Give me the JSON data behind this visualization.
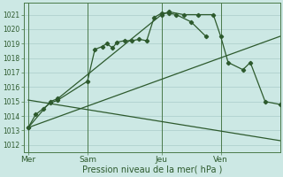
{
  "bg_color": "#cce8e4",
  "grid_color": "#aaccca",
  "line_color": "#2d5a2d",
  "xlabel": "Pression niveau de la mer( hPa )",
  "ylim": [
    1011.5,
    1021.8
  ],
  "yticks": [
    1012,
    1013,
    1014,
    1015,
    1016,
    1017,
    1018,
    1019,
    1020,
    1021
  ],
  "day_labels": [
    "Mer",
    "Sam",
    "Jeu",
    "Ven"
  ],
  "day_positions": [
    0,
    4,
    9,
    13
  ],
  "xlim": [
    -0.3,
    17
  ],
  "series1_x": [
    0,
    0.5,
    1.0,
    1.5,
    2.0,
    4.0,
    4.5,
    5.0,
    5.3,
    5.7,
    6.0,
    6.5,
    7.0,
    7.5,
    8.0,
    8.5,
    9.0,
    9.5,
    10.0,
    11.0,
    12.0
  ],
  "series1_y": [
    1013.2,
    1014.1,
    1014.5,
    1014.9,
    1015.1,
    1016.4,
    1018.6,
    1018.8,
    1019.0,
    1018.7,
    1019.1,
    1019.2,
    1019.2,
    1019.3,
    1019.2,
    1020.8,
    1021.1,
    1021.1,
    1021.0,
    1020.5,
    1019.5
  ],
  "series2_x": [
    0,
    1.5,
    2.0,
    9.0,
    9.5,
    10.5,
    11.5,
    12.5,
    13.0,
    13.5,
    14.5,
    15.0,
    16.0,
    17.0
  ],
  "series2_y": [
    1013.2,
    1015.0,
    1015.2,
    1021.0,
    1021.2,
    1021.0,
    1021.0,
    1021.0,
    1019.5,
    1017.7,
    1017.2,
    1017.7,
    1015.0,
    1014.8
  ],
  "series3_x": [
    0,
    17
  ],
  "series3_y": [
    1013.2,
    1019.5
  ],
  "series4_x": [
    0,
    17
  ],
  "series4_y": [
    1015.1,
    1012.3
  ],
  "vline_positions": [
    0,
    4,
    9,
    13
  ]
}
